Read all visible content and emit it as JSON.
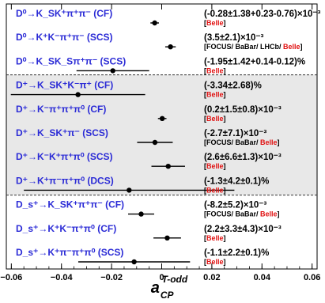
{
  "chart_data": {
    "type": "scatter",
    "xlabel": "a",
    "xlabel_sub": "CP",
    "xlabel_sup": "T-odd",
    "xlim": [
      -0.062,
      0.062
    ],
    "x_ticks": [
      "−0.06",
      "−0.04",
      "−0.02",
      "0",
      "0.02",
      "0.04",
      "0.06"
    ],
    "x_tick_values": [
      -0.06,
      -0.04,
      -0.02,
      0,
      0.02,
      0.04,
      0.06
    ],
    "shaded_groups": [
      [
        3,
        7
      ]
    ],
    "entries": [
      {
        "label": "D⁰→K_SK⁺π⁺π⁻ (CF)",
        "value": -0.0028,
        "err": 0.0017,
        "result": "(-0.28±1.38+0.23-0.76)×10⁻³",
        "source": "",
        "source_red": "Belle"
      },
      {
        "label": "D⁰→K⁺K⁻π⁺π⁻ (SCS)",
        "value": 0.0035,
        "err": 0.0021,
        "result": "(3.5±2.1)×10⁻³",
        "source": "[FOCUS/ BaBar/ LHCb/ ",
        "source_red": "Belle"
      },
      {
        "label": "D⁰→K_SK_Sπ⁺π⁻ (SCS)",
        "value": -0.0195,
        "err": 0.0145,
        "result": "(-1.95±1.42+0.14-0.12)%",
        "source": "",
        "source_red": "Belle"
      },
      {
        "label": "D⁺→K_SK⁺K⁻π⁺ (CF)",
        "value": -0.0334,
        "err": 0.0268,
        "result": "(-3.34±2.68)%",
        "source": "",
        "source_red": "Belle"
      },
      {
        "label": "D⁺→K⁻π⁺π⁺π⁰ (CF)",
        "value": 0.0002,
        "err": 0.0017,
        "result": "(0.2±1.5±0.8)×10⁻³",
        "source": "",
        "source_red": "Belle"
      },
      {
        "label": "D⁺→K_SK⁺π⁻ (SCS)",
        "value": -0.0027,
        "err": 0.0071,
        "result": "(-2.7±7.1)×10⁻³",
        "source": "[FOCUS/ BaBar/ ",
        "source_red": "Belle"
      },
      {
        "label": "D⁺→K⁻K⁺π⁺π⁰ (SCS)",
        "value": 0.0026,
        "err": 0.0067,
        "result": "(2.6±6.6±1.3)×10⁻³",
        "source": "",
        "source_red": "Belle"
      },
      {
        "label": "D⁺→K⁺π⁻π⁺π⁰ (DCS)",
        "value": -0.013,
        "err": 0.042,
        "result": "(-1.3±4.2±0.1)%",
        "source": "",
        "source_red": "Belle"
      },
      {
        "label": "D_s⁺→K_SK⁺π⁺π⁻ (CF)",
        "value": -0.0082,
        "err": 0.0052,
        "result": "(-8.2±5.2)×10⁻³",
        "source": "[FOCUS/ BaBar/ ",
        "source_red": "Belle"
      },
      {
        "label": "D_s⁺→K⁺K⁻π⁺π⁰ (CF)",
        "value": 0.0022,
        "err": 0.0055,
        "result": "(2.2±3.3±4.3)×10⁻³",
        "source": "",
        "source_red": "Belle"
      },
      {
        "label": "D_s⁺→K⁺π⁻π⁺π⁰ (SCS)",
        "value": -0.011,
        "err": 0.0223,
        "result": "(-1.1±2.2±0.1)%",
        "source": "",
        "source_red": "Belle"
      }
    ]
  }
}
